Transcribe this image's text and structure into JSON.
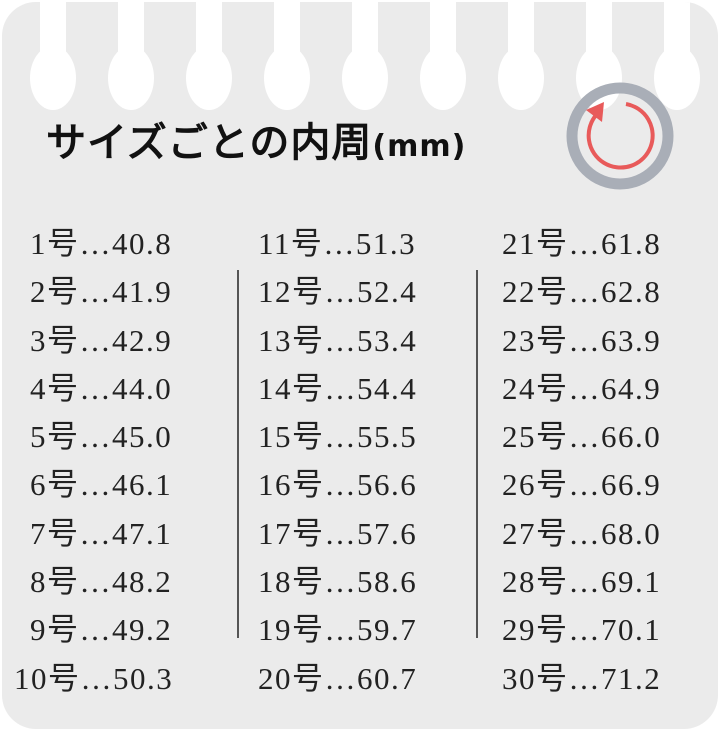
{
  "title": {
    "text": "サイズごとの内周",
    "unit": "(mm)"
  },
  "icon": {
    "name": "ring-circumference-icon",
    "ring_color": "#a9aeb7",
    "arrow_color": "#e85a5a"
  },
  "columns": [
    [
      "1号…40.8",
      "2号…41.9",
      "3号…42.9",
      "4号…44.0",
      "5号…45.0",
      "6号…46.1",
      "7号…47.1",
      "8号…48.2",
      "9号…49.2",
      "10号…50.3"
    ],
    [
      "11号…51.3",
      "12号…52.4",
      "13号…53.4",
      "14号…54.4",
      "15号…55.5",
      "16号…56.6",
      "17号…57.6",
      "18号…58.6",
      "19号…59.7",
      "20号…60.7"
    ],
    [
      "21号…61.8",
      "22号…62.8",
      "23号…63.9",
      "24号…64.9",
      "25号…66.0",
      "26号…66.9",
      "27号…68.0",
      "28号…69.1",
      "29号…70.1",
      "30号…71.2"
    ]
  ]
}
